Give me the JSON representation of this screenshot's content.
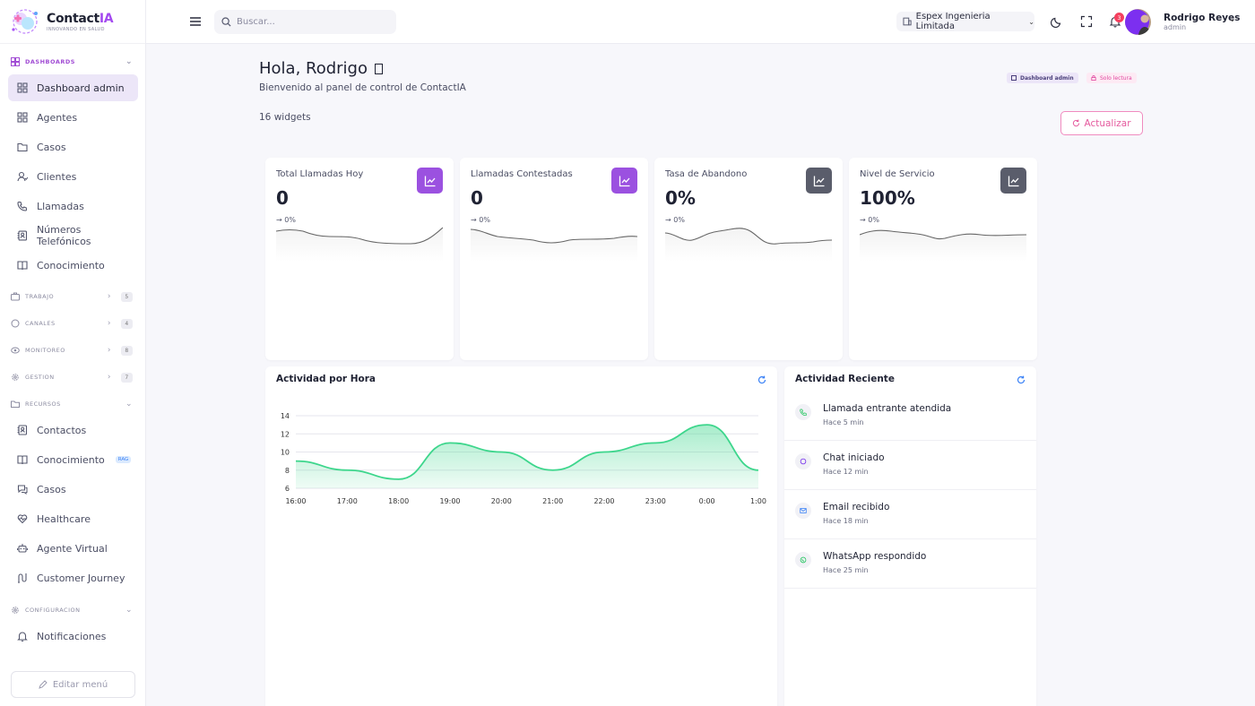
{
  "brand": {
    "name_main": "Contact",
    "name_accent": "IA",
    "tagline": "INNOVANDO EN SALUD"
  },
  "sidebar": {
    "sections": {
      "dashboards": "DASHBOARDS",
      "trabajo": {
        "label": "TRABAJO",
        "count": "5"
      },
      "canales": {
        "label": "CANALES",
        "count": "4"
      },
      "monitoreo": {
        "label": "MONITOREO",
        "count": "8"
      },
      "gestion": {
        "label": "GESTION",
        "count": "7"
      },
      "recursos": "RECURSOS",
      "configuracion": "CONFIGURACION"
    },
    "dashboard_items": [
      {
        "label": "Dashboard admin",
        "icon": "grid-icon",
        "active": true
      },
      {
        "label": "Agentes",
        "icon": "grid-icon"
      },
      {
        "label": "Casos",
        "icon": "folder-icon"
      },
      {
        "label": "Clientes",
        "icon": "user-icon"
      },
      {
        "label": "Llamadas",
        "icon": "phone-icon"
      },
      {
        "label": "Números Telefónicos",
        "icon": "contacts-icon"
      },
      {
        "label": "Conocimiento",
        "icon": "book-icon"
      }
    ],
    "recursos_items": [
      {
        "label": "Contactos",
        "icon": "contacts-icon"
      },
      {
        "label": "Conocimiento",
        "icon": "book-icon",
        "badge": "RAG"
      },
      {
        "label": "Casos",
        "icon": "chat-icon"
      },
      {
        "label": "Healthcare",
        "icon": "heart-pulse-icon"
      },
      {
        "label": "Agente Virtual",
        "icon": "bot-icon"
      },
      {
        "label": "Customer Journey",
        "icon": "journey-icon"
      }
    ],
    "config_items": [
      {
        "label": "Notificaciones",
        "icon": "bell-icon"
      }
    ],
    "edit_menu": "Editar menú"
  },
  "header": {
    "search_placeholder": "Buscar...",
    "company": "Espex Ingenieria Limitada",
    "notification_count": "3",
    "user_name": "Rodrigo Reyes",
    "user_role": "admin"
  },
  "main": {
    "greeting": "Hola, Rodrigo",
    "subtitle": "Bienvenido al panel de control de ContactIA",
    "badge_admin": "Dashboard admin",
    "badge_readonly": "Solo lectura",
    "widgets_count": "16 widgets",
    "refresh_label": "Actualizar"
  },
  "kpis": [
    {
      "label": "Total Llamadas Hoy",
      "value": "0",
      "change": "→ 0%",
      "icon_color": "#9b51e0"
    },
    {
      "label": "Llamadas Contestadas",
      "value": "0",
      "change": "→ 0%",
      "icon_color": "#9b51e0"
    },
    {
      "label": "Tasa de Abandono",
      "value": "0%",
      "change": "→ 0%",
      "icon_color": "#5a5d6b"
    },
    {
      "label": "Nivel de Servicio",
      "value": "100%",
      "change": "→ 0%",
      "icon_color": "#5a5d6b"
    }
  ],
  "colors": {
    "accent": "#9b51e0",
    "chart_line": "#3dd68c",
    "chart_fill": "#3dd68c",
    "pink": "#e55a9e"
  },
  "chart_data": {
    "type": "area",
    "title": "Actividad por Hora",
    "x": [
      "16:00",
      "17:00",
      "18:00",
      "19:00",
      "20:00",
      "21:00",
      "22:00",
      "23:00",
      "0:00",
      "1:00"
    ],
    "values": [
      9,
      8,
      7,
      11,
      10,
      8,
      10,
      11,
      13,
      8
    ],
    "y_ticks": [
      6,
      8,
      10,
      12,
      14
    ],
    "ylim": [
      6,
      14
    ],
    "grid": true
  },
  "activity": {
    "title": "Actividad Reciente",
    "items": [
      {
        "title": "Llamada entrante atendida",
        "time": "Hace 5 min",
        "icon": "phone-icon",
        "color": "#22c55e"
      },
      {
        "title": "Chat iniciado",
        "time": "Hace 12 min",
        "icon": "chat-icon",
        "color": "#7c3aed"
      },
      {
        "title": "Email recibido",
        "time": "Hace 18 min",
        "icon": "mail-icon",
        "color": "#3b82f6"
      },
      {
        "title": "WhatsApp respondido",
        "time": "Hace 25 min",
        "icon": "whatsapp-icon",
        "color": "#22c55e"
      }
    ]
  }
}
